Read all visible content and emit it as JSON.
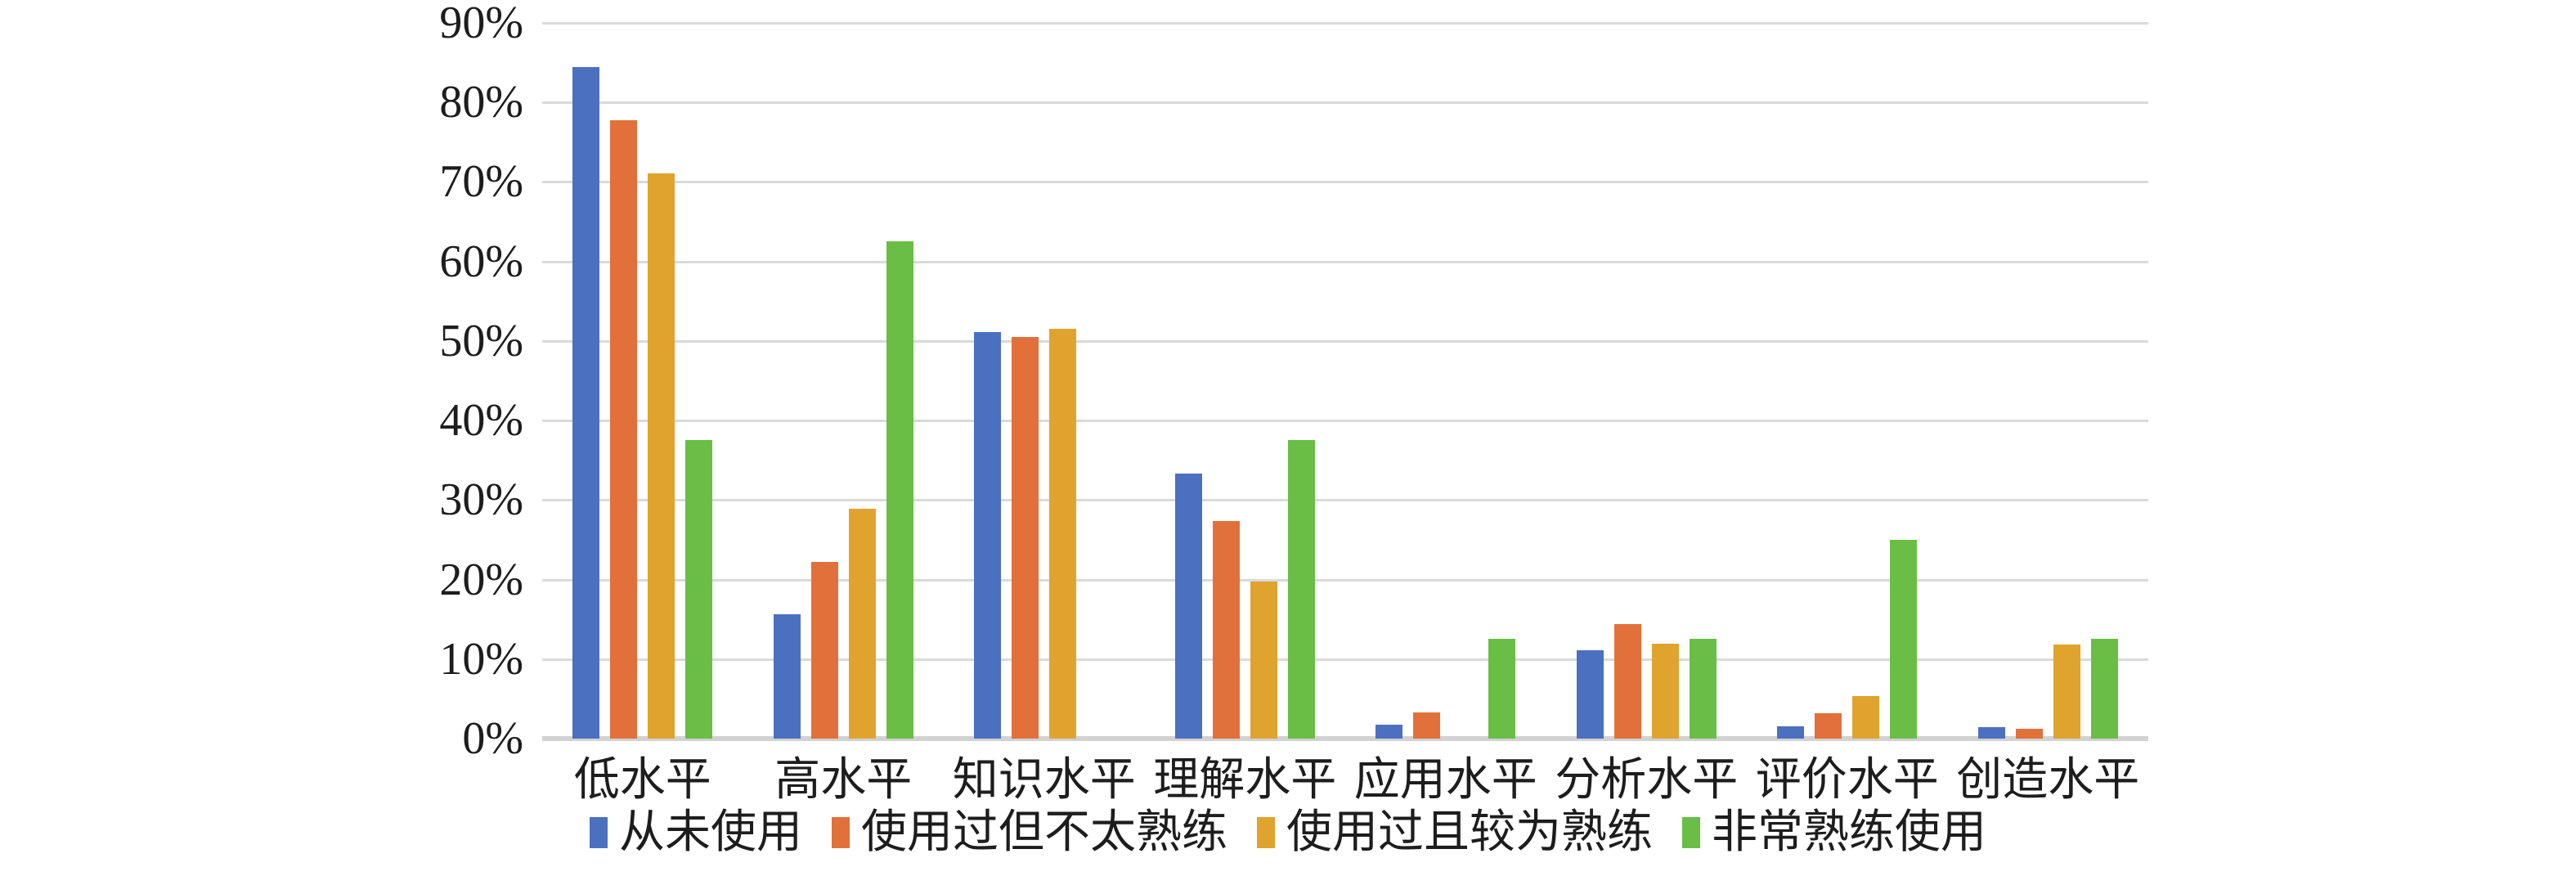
{
  "chart_data": {
    "type": "bar",
    "title": "",
    "xlabel": "",
    "ylabel": "",
    "categories": [
      "低水平",
      "高水平",
      "知识水平",
      "理解水平",
      "应用水平",
      "分析水平",
      "评价水平",
      "创造水平"
    ],
    "series": [
      {
        "name": "从未使用",
        "color": "#4b70c0",
        "values": [
          84.4,
          15.6,
          51.1,
          33.3,
          1.8,
          11.1,
          1.5,
          1.4
        ]
      },
      {
        "name": "使用过但不太熟练",
        "color": "#e2703a",
        "values": [
          77.8,
          22.2,
          50.5,
          27.4,
          3.3,
          14.4,
          3.2,
          1.2
        ]
      },
      {
        "name": "使用过且较为熟练",
        "color": "#e0a32e",
        "values": [
          71.1,
          28.9,
          51.5,
          19.8,
          0,
          11.9,
          5.3,
          11.8
        ]
      },
      {
        "name": "非常熟练使用",
        "color": "#6abd45",
        "values": [
          37.5,
          62.5,
          0,
          37.5,
          12.5,
          12.5,
          25.0,
          12.5
        ]
      }
    ],
    "y_axis": {
      "min": 0,
      "max": 90,
      "step": 10,
      "tick_labels": [
        "0%",
        "10%",
        "20%",
        "30%",
        "40%",
        "50%",
        "60%",
        "70%",
        "80%",
        "90%"
      ]
    },
    "grid": true,
    "legend_position": "bottom"
  },
  "colors": {
    "background": "#ffffff",
    "gridline": "#dadada",
    "axis_line": "#d2d2d2",
    "text": "#1d1d1d"
  }
}
